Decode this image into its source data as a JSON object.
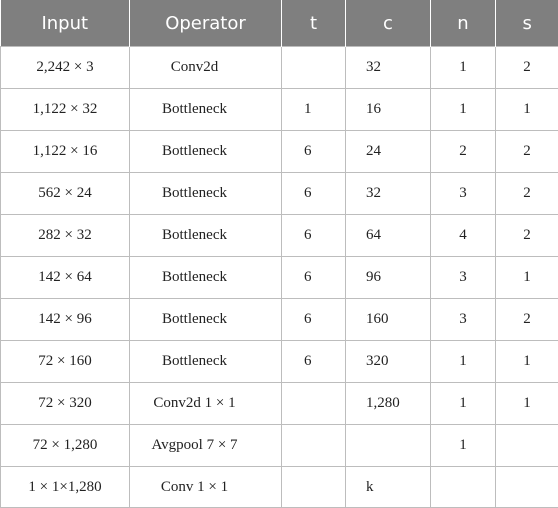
{
  "table": {
    "headers": [
      "Input",
      "Operator",
      "t",
      "c",
      "n",
      "s"
    ],
    "rows": [
      [
        "2,242 × 3",
        "Conv2d",
        "",
        "32",
        "1",
        "2"
      ],
      [
        "1,122 × 32",
        "Bottleneck",
        "1",
        "16",
        "1",
        "1"
      ],
      [
        "1,122 × 16",
        "Bottleneck",
        "6",
        "24",
        "2",
        "2"
      ],
      [
        "562 × 24",
        "Bottleneck",
        "6",
        "32",
        "3",
        "2"
      ],
      [
        "282 × 32",
        "Bottleneck",
        "6",
        "64",
        "4",
        "2"
      ],
      [
        "142 × 64",
        "Bottleneck",
        "6",
        "96",
        "3",
        "1"
      ],
      [
        "142 × 96",
        "Bottleneck",
        "6",
        "160",
        "3",
        "2"
      ],
      [
        "72 × 160",
        "Bottleneck",
        "6",
        "320",
        "1",
        "1"
      ],
      [
        "72 × 320",
        "Conv2d 1 × 1",
        "",
        "1,280",
        "1",
        "1"
      ],
      [
        "72 × 1,280",
        "Avgpool 7 × 7",
        "",
        "",
        "1",
        ""
      ],
      [
        "1 × 1×1,280",
        "Conv 1 × 1",
        "",
        "k",
        "",
        ""
      ]
    ]
  },
  "colors": {
    "header_bg": "#7f7f7f",
    "header_text": "#ffffff",
    "grid_line": "#bdbdbd"
  }
}
